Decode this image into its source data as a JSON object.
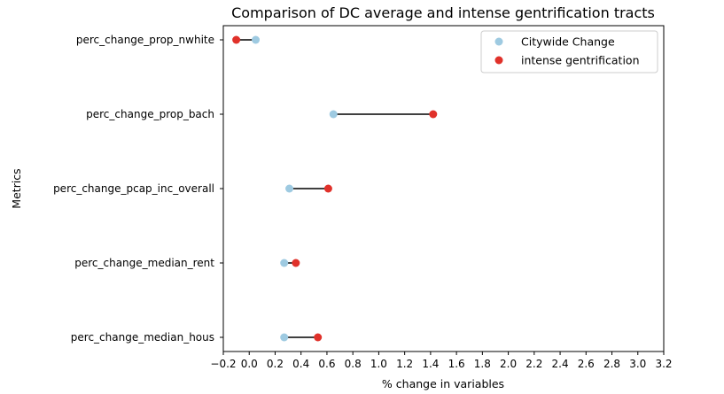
{
  "chart_data": {
    "type": "scatter",
    "title": "Comparison of DC average and intense gentrification tracts",
    "xlabel": "% change in variables",
    "ylabel": "Metrics",
    "xlim": [
      -0.2,
      3.2
    ],
    "xticks": [
      "−0.2",
      "0.0",
      "0.2",
      "0.4",
      "0.6",
      "0.8",
      "1.0",
      "1.2",
      "1.4",
      "1.6",
      "1.8",
      "2.0",
      "2.2",
      "2.4",
      "2.6",
      "2.8",
      "3.0",
      "3.2"
    ],
    "categories": [
      "perc_change_prop_nwhite",
      "perc_change_prop_bach",
      "perc_change_pcap_inc_overall",
      "perc_change_median_rent",
      "perc_change_median_hous"
    ],
    "legend_position": "top-right",
    "grid": false,
    "series": [
      {
        "name": "Citywide Change",
        "color": "#9ecae1",
        "values": [
          0.05,
          0.65,
          0.31,
          0.27,
          0.27
        ]
      },
      {
        "name": "intense gentrification",
        "color": "#e0312a",
        "values": [
          -0.1,
          1.42,
          0.61,
          0.36,
          0.53
        ]
      }
    ],
    "connector_color": "#000000"
  }
}
